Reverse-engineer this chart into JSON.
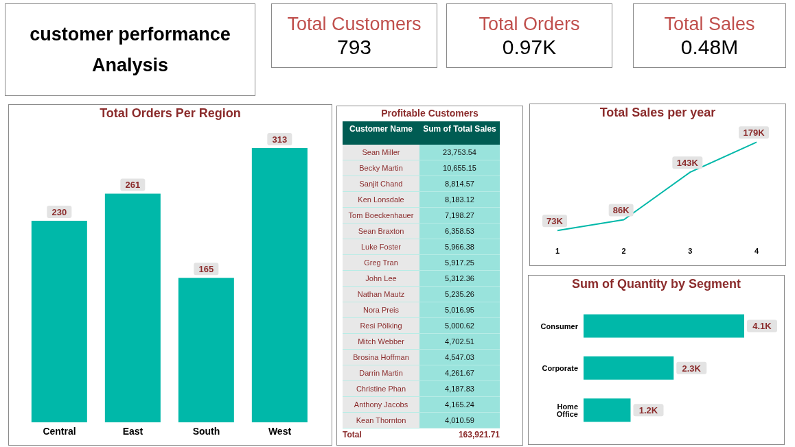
{
  "chart_data": [
    {
      "type": "other",
      "title": "customer performance Analysis"
    },
    {
      "type": "other",
      "title": "Total Customers",
      "annotations": [
        "793"
      ]
    },
    {
      "type": "other",
      "title": "Total Orders",
      "annotations": [
        "0.97K"
      ]
    },
    {
      "type": "other",
      "title": "Total Sales",
      "annotations": [
        "0.48M"
      ]
    },
    {
      "type": "bar",
      "title": "Total Orders Per Region",
      "categories": [
        "Central",
        "East",
        "South",
        "West"
      ],
      "values": [
        230,
        261,
        165,
        313
      ],
      "color": "#00b8a9",
      "data_labels": true
    },
    {
      "type": "other",
      "title": "Profitable Customers",
      "xlabel": "Customer Name",
      "ylabel": "Sum of Total Sales",
      "categories": [
        "Sean Miller",
        "Becky Martin",
        "Sanjit Chand",
        "Ken Lonsdale",
        "Tom Boeckenhauer",
        "Sean Braxton",
        "Luke Foster",
        "Greg Tran",
        "John Lee",
        "Nathan Mautz",
        "Nora Preis",
        "Resi Pölking",
        "Mitch Webber",
        "Brosina Hoffman",
        "Darrin Martin",
        "Christine Phan",
        "Anthony Jacobs",
        "Kean Thornton"
      ],
      "values": [
        23753.54,
        10655.15,
        8814.57,
        8183.12,
        7198.27,
        6358.53,
        5966.38,
        5917.25,
        5312.36,
        5235.26,
        5016.95,
        5000.62,
        4702.51,
        4547.03,
        4261.67,
        4187.83,
        4165.24,
        4010.59
      ],
      "value_labels": [
        "23,753.54",
        "10,655.15",
        "8,814.57",
        "8,183.12",
        "7,198.27",
        "6,358.53",
        "5,966.38",
        "5,917.25",
        "5,312.36",
        "5,235.26",
        "5,016.95",
        "5,000.62",
        "4,702.51",
        "4,547.03",
        "4,261.67",
        "4,187.83",
        "4,165.24",
        "4,010.59"
      ],
      "annotations": [
        "Total",
        "163,921.71"
      ]
    },
    {
      "type": "line",
      "title": "Total Sales per  year",
      "categories": [
        "1",
        "2",
        "3",
        "4"
      ],
      "values": [
        73,
        86,
        143,
        179
      ],
      "value_labels": [
        "73K",
        "86K",
        "143K",
        "179K"
      ],
      "color": "#00b8a9"
    },
    {
      "type": "bar",
      "orientation": "horizontal",
      "title": "Sum of Quantity by Segment",
      "categories": [
        "Consumer",
        "Corporate",
        "Home Office"
      ],
      "values": [
        4.1,
        2.3,
        1.2
      ],
      "value_labels": [
        "4.1K",
        "2.3K",
        "1.2K"
      ],
      "color": "#00b8a9"
    }
  ]
}
